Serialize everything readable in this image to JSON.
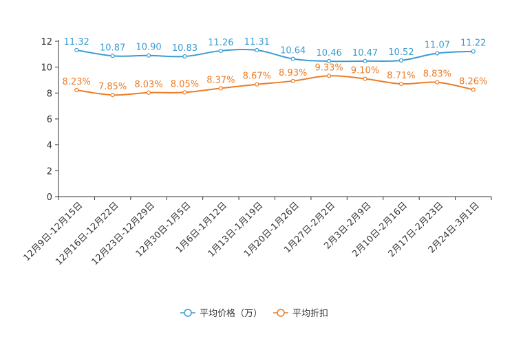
{
  "chart_data": {
    "type": "line",
    "title": "",
    "xlabel": "",
    "ylabel": "",
    "ylim": [
      0,
      12
    ],
    "yticks": [
      0,
      2,
      4,
      6,
      8,
      10,
      12
    ],
    "grid": false,
    "legend_position": "bottom-center",
    "categories": [
      "12月9日-12月15日",
      "12月16日-12月22日",
      "12月23日-12月29日",
      "12月30日-1月5日",
      "1月6日-1月12日",
      "1月13日-1月19日",
      "1月20日-1月26日",
      "1月27日-2月2日",
      "2月3日-2月9日",
      "2月10日-2月16日",
      "2月17日-2月23日",
      "2月24日-3月1日"
    ],
    "series": [
      {
        "name": "平均价格（万）",
        "color": "#3a9bd0",
        "values": [
          11.32,
          10.87,
          10.9,
          10.83,
          11.26,
          11.31,
          10.64,
          10.46,
          10.47,
          10.52,
          11.07,
          11.22
        ],
        "labels": [
          "11.32",
          "10.87",
          "10.90",
          "10.83",
          "11.26",
          "11.31",
          "10.64",
          "10.46",
          "10.47",
          "10.52",
          "11.07",
          "11.22"
        ]
      },
      {
        "name": "平均折扣",
        "color": "#ee7b23",
        "values": [
          8.23,
          7.85,
          8.03,
          8.05,
          8.37,
          8.67,
          8.93,
          9.33,
          9.1,
          8.71,
          8.83,
          8.26
        ],
        "labels": [
          "8.23%",
          "7.85%",
          "8.03%",
          "8.05%",
          "8.37%",
          "8.67%",
          "8.93%",
          "9.33%",
          "9.10%",
          "8.71%",
          "8.83%",
          "8.26%"
        ]
      }
    ]
  }
}
